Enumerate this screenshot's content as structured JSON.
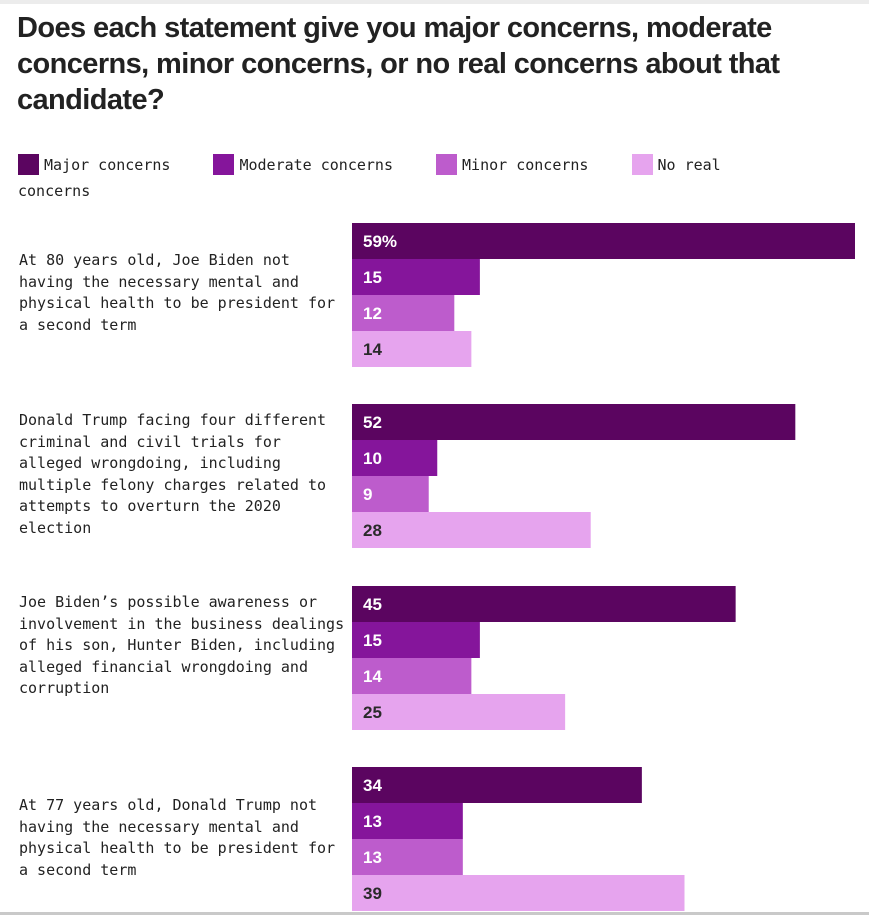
{
  "title": "Does each statement give you major concerns, moderate concerns, minor concerns, or no real concerns about that candidate?",
  "legend": [
    {
      "label": "Major concerns",
      "color": "#5b0560"
    },
    {
      "label": "Moderate concerns",
      "color": "#85159b"
    },
    {
      "label": "Minor concerns",
      "color": "#bd5ccc"
    },
    {
      "label": "No real concerns",
      "color": "#e6a4ee"
    }
  ],
  "chart_data": {
    "type": "bar",
    "orientation": "horizontal",
    "title": "Does each statement give you major concerns, moderate concerns, minor concerns, or no real concerns about that candidate?",
    "xlabel": "",
    "ylabel": "",
    "xlim": [
      0,
      59
    ],
    "grid": false,
    "legend_position": "top",
    "categories": [
      "At 80 years old, Joe Biden not having the necessary mental and physical health to be president for a second term",
      "Donald Trump facing four different criminal and civil trials for alleged wrongdoing, including multiple felony charges related to attempts to overturn the 2020 election",
      "Joe Biden’s possible awareness or involvement in the business dealings of his son, Hunter Biden, including alleged financial wrongdoing and corruption",
      "At 77 years old, Donald Trump not having the necessary mental and physical health to be president for a second term"
    ],
    "series": [
      {
        "name": "Major concerns",
        "color": "#5b0560",
        "values": [
          59,
          52,
          45,
          34
        ],
        "labels": [
          "59%",
          "52",
          "45",
          "34"
        ]
      },
      {
        "name": "Moderate concerns",
        "color": "#85159b",
        "values": [
          15,
          10,
          15,
          13
        ],
        "labels": [
          "15",
          "10",
          "15",
          "13"
        ]
      },
      {
        "name": "Minor concerns",
        "color": "#bd5ccc",
        "values": [
          12,
          9,
          14,
          13
        ],
        "labels": [
          "12",
          "9",
          "14",
          "13"
        ]
      },
      {
        "name": "No real concerns",
        "color": "#e6a4ee",
        "values": [
          14,
          28,
          25,
          39
        ],
        "labels": [
          "14",
          "28",
          "25",
          "39"
        ]
      }
    ]
  }
}
